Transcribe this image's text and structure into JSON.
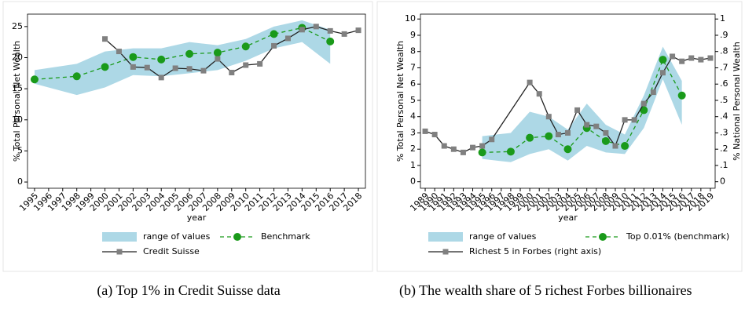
{
  "chart_data": [
    {
      "type": "line",
      "caption": "(a) Top 1% in Credit Suisse data",
      "y_label": "% Total Personal Net Wealth",
      "x_label": "year",
      "xlim": [
        1994.5,
        2018.5
      ],
      "ylim": [
        -1,
        27
      ],
      "xticks": [
        1995,
        1996,
        1997,
        1998,
        1999,
        2000,
        2001,
        2002,
        2003,
        2004,
        2005,
        2006,
        2007,
        2008,
        2009,
        2010,
        2011,
        2012,
        2013,
        2014,
        2015,
        2016,
        2017,
        2018
      ],
      "yticks": [
        0,
        5,
        10,
        15,
        20,
        25
      ],
      "grid": false,
      "legend": "bottom",
      "series": [
        {
          "name": "range of values",
          "color": "#add8e6",
          "x": [
            1995,
            1998,
            2000,
            2002,
            2004,
            2006,
            2008,
            2010,
            2012,
            2014,
            2016
          ],
          "low": [
            15.8,
            14.0,
            15.2,
            17.2,
            17.0,
            17.5,
            18.0,
            19.5,
            21.5,
            22.5,
            19.0
          ],
          "high": [
            18.0,
            19.0,
            21.0,
            21.5,
            21.5,
            22.5,
            22.0,
            23.0,
            25.0,
            26.0,
            24.5
          ]
        },
        {
          "name": "Benchmark",
          "color": "#1a9a1a",
          "dashed": true,
          "marker": "circle",
          "x": [
            1995,
            1998,
            2000,
            2002,
            2004,
            2006,
            2008,
            2010,
            2012,
            2014,
            2016
          ],
          "values": [
            16.5,
            17.0,
            18.5,
            20.1,
            19.7,
            20.6,
            20.8,
            21.8,
            23.8,
            24.8,
            22.6
          ]
        },
        {
          "name": "Credit Suisse",
          "color": "#222222",
          "marker_color": "#808080",
          "marker": "square",
          "x": [
            2000,
            2001,
            2002,
            2003,
            2004,
            2005,
            2006,
            2007,
            2008,
            2009,
            2010,
            2011,
            2012,
            2013,
            2014,
            2015,
            2016,
            2017,
            2018
          ],
          "values": [
            23.0,
            21.0,
            18.5,
            18.4,
            16.8,
            18.3,
            18.2,
            17.9,
            19.8,
            17.6,
            18.8,
            19.0,
            21.9,
            23.1,
            24.5,
            25.0,
            24.3,
            23.8,
            24.4
          ]
        }
      ]
    },
    {
      "type": "line",
      "caption": "(b) The wealth share of 5 richest Forbes billionaires",
      "y_label": "% Total Personal Net Wealth",
      "y2_label": "% National Personal Wealth",
      "x_label": "year",
      "xlim": [
        1988.5,
        2019.5
      ],
      "ylim": [
        -0.4,
        10.3
      ],
      "y2lim": [
        -0.04,
        1.03
      ],
      "xticks": [
        1989,
        1990,
        1991,
        1992,
        1993,
        1994,
        1995,
        1996,
        1997,
        1998,
        1999,
        2000,
        2001,
        2002,
        2003,
        2004,
        2005,
        2006,
        2007,
        2008,
        2009,
        2010,
        2011,
        2012,
        2013,
        2014,
        2015,
        2016,
        2017,
        2018,
        2019
      ],
      "yticks": [
        0,
        1,
        2,
        3,
        4,
        5,
        6,
        7,
        8,
        9,
        10
      ],
      "y2ticks": [
        0,
        {
          "value": 0.1,
          "label": ".1"
        },
        {
          "value": 0.2,
          "label": ".2"
        },
        {
          "value": 0.3,
          "label": ".3"
        },
        {
          "value": 0.4,
          "label": ".4"
        },
        {
          "value": 0.5,
          "label": ".5"
        },
        {
          "value": 0.6,
          "label": ".6"
        },
        {
          "value": 0.7,
          "label": ".7"
        },
        {
          "value": 0.8,
          "label": ".8"
        },
        {
          "value": 0.9,
          "label": ".9"
        },
        1
      ],
      "grid": false,
      "legend": "bottom",
      "series": [
        {
          "name": "range of values",
          "color": "#add8e6",
          "x": [
            1995,
            1998,
            2000,
            2002,
            2004,
            2006,
            2008,
            2010,
            2012,
            2014,
            2016
          ],
          "low": [
            1.4,
            1.2,
            1.7,
            2.0,
            1.3,
            2.2,
            1.8,
            1.7,
            3.3,
            6.3,
            3.5
          ],
          "high": [
            2.8,
            3.0,
            4.3,
            4.0,
            3.2,
            4.8,
            3.5,
            2.9,
            5.3,
            8.3,
            6.2
          ]
        },
        {
          "name": "Top 0.01% (benchmark)",
          "color": "#1a9a1a",
          "dashed": true,
          "marker": "circle",
          "x": [
            1995,
            1998,
            2000,
            2002,
            2004,
            2006,
            2008,
            2010,
            2012,
            2014,
            2016
          ],
          "values": [
            1.8,
            1.85,
            2.7,
            2.8,
            2.0,
            3.3,
            2.5,
            2.2,
            4.4,
            7.5,
            5.3
          ]
        },
        {
          "name": "Richest 5 in Forbes (right axis)",
          "color": "#222222",
          "marker_color": "#808080",
          "marker": "square",
          "axis": "y2",
          "x": [
            1989,
            1990,
            1991,
            1992,
            1993,
            1994,
            1995,
            1996,
            2000,
            2001,
            2002,
            2003,
            2004,
            2005,
            2006,
            2007,
            2008,
            2009,
            2010,
            2011,
            2012,
            2013,
            2014,
            2015,
            2016,
            2017,
            2018,
            2019
          ],
          "values": [
            0.31,
            0.29,
            0.22,
            0.2,
            0.18,
            0.21,
            0.22,
            0.26,
            0.61,
            0.54,
            0.4,
            0.29,
            0.3,
            0.44,
            0.35,
            0.34,
            0.3,
            0.22,
            0.38,
            0.38,
            0.48,
            0.55,
            0.67,
            0.77,
            0.74,
            0.76,
            0.75,
            0.76
          ]
        }
      ]
    }
  ]
}
